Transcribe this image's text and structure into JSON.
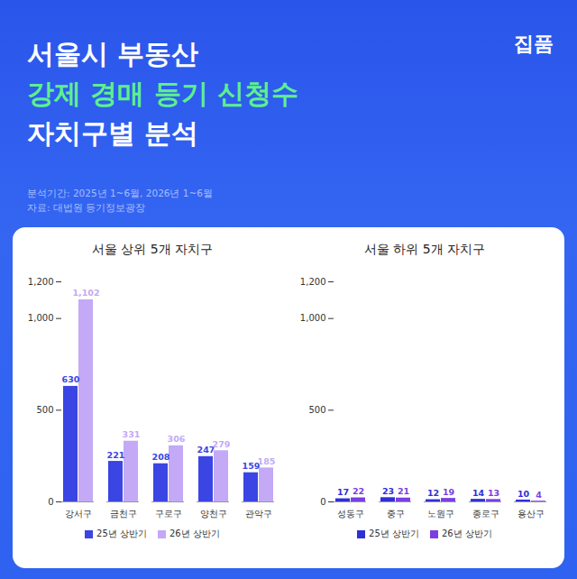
{
  "header": {
    "brand": "집품",
    "title_lines": [
      "서울시 부동산",
      "강제 경매 등기 신청수",
      "자치구별 분석"
    ],
    "subtitle_lines": [
      "분석기간: 2025년 1~6월, 2026년 1~6월",
      "자료: 대법원 등기정보광장"
    ]
  },
  "chart_data": [
    {
      "type": "bar",
      "title": "서울 상위 5개 자치구",
      "categories": [
        "강서구",
        "금천구",
        "구로구",
        "양천구",
        "관악구"
      ],
      "series": [
        {
          "name": "25년 상반기",
          "color": "#3a45e3",
          "values": [
            630,
            221,
            208,
            247,
            159
          ]
        },
        {
          "name": "26년 상반기",
          "color": "#c3a9f6",
          "values": [
            1102,
            331,
            306,
            279,
            185
          ],
          "value_labels": [
            "1,102",
            "331",
            "306",
            "279",
            "185"
          ]
        }
      ],
      "ylim": [
        0,
        1200
      ],
      "yticks": [
        0,
        500,
        {
          "value": 1000,
          "label": "1,000"
        },
        {
          "value": 1200,
          "label": "1,200"
        }
      ],
      "grid": false,
      "data_labels": true,
      "legend": "bottom"
    },
    {
      "type": "bar",
      "title": "서울 하위 5개 자치구",
      "categories": [
        "성동구",
        "중구",
        "노원구",
        "종로구",
        "용산구"
      ],
      "series": [
        {
          "name": "25년 상반기",
          "color": "#2f2fd6",
          "values": [
            17,
            23,
            12,
            14,
            10
          ]
        },
        {
          "name": "26년 상반기",
          "color": "#7a3fe2",
          "values": [
            22,
            21,
            19,
            13,
            4
          ]
        }
      ],
      "ylim": [
        0,
        1200
      ],
      "yticks": [
        0,
        500,
        {
          "value": 1000,
          "label": "1,000"
        },
        {
          "value": 1200,
          "label": "1,200"
        }
      ],
      "grid": false,
      "data_labels": true,
      "legend": "bottom"
    }
  ]
}
